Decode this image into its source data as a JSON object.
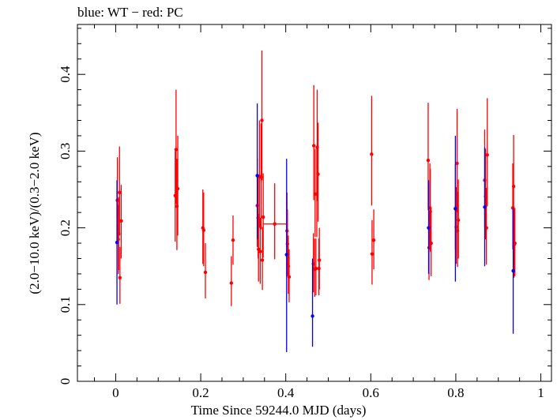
{
  "chart_data": {
    "type": "scatter",
    "title": "blue: WT − red: PC",
    "xlabel": "Time Since 59244.0 MJD (days)",
    "ylabel": "(2.0−10.0 keV)/(0.3−2.0 keV)",
    "xlim": [
      -0.09,
      1.025
    ],
    "ylim": [
      0,
      0.465
    ],
    "x_ticks": [
      0,
      0.2,
      0.4,
      0.6,
      0.8,
      1
    ],
    "x_tick_labels": [
      "0",
      "0.2",
      "0.4",
      "0.6",
      "0.8",
      "1"
    ],
    "y_ticks": [
      0,
      0.1,
      0.2,
      0.3,
      0.4
    ],
    "y_tick_labels": [
      "0",
      "0.1",
      "0.2",
      "0.3",
      "0.4"
    ],
    "grid": false,
    "series": [
      {
        "color": "#0000ff",
        "points": [
          {
            "x": 0.003,
            "y": 0.181,
            "lo": 0.1,
            "hi": 0.262
          },
          {
            "x": 0.333,
            "y": 0.268,
            "lo": 0.185,
            "hi": 0.362
          },
          {
            "x": 0.402,
            "y": 0.165,
            "lo": 0.038,
            "hi": 0.29
          },
          {
            "x": 0.463,
            "y": 0.085,
            "lo": 0.045,
            "hi": 0.16
          },
          {
            "x": 0.736,
            "y": 0.2,
            "lo": 0.14,
            "hi": 0.262
          },
          {
            "x": 0.799,
            "y": 0.225,
            "lo": 0.13,
            "hi": 0.32
          },
          {
            "x": 0.868,
            "y": 0.227,
            "lo": 0.15,
            "hi": 0.305
          },
          {
            "x": 0.935,
            "y": 0.144,
            "lo": 0.062,
            "hi": 0.226
          }
        ]
      },
      {
        "color": "#ff0000",
        "points": [
          {
            "x": 0.004,
            "y": 0.236,
            "lo": 0.18,
            "hi": 0.292
          },
          {
            "x": 0.006,
            "y": 0.185,
            "lo": 0.14,
            "hi": 0.23
          },
          {
            "x": 0.007,
            "y": 0.192,
            "lo": 0.145,
            "hi": 0.24
          },
          {
            "x": 0.009,
            "y": 0.246,
            "lo": 0.19,
            "hi": 0.306
          },
          {
            "x": 0.01,
            "y": 0.135,
            "lo": 0.101,
            "hi": 0.175
          },
          {
            "x": 0.013,
            "y": 0.209,
            "lo": 0.16,
            "hi": 0.256
          },
          {
            "x": 0.14,
            "y": 0.242,
            "lo": 0.182,
            "hi": 0.3
          },
          {
            "x": 0.142,
            "y": 0.302,
            "lo": 0.231,
            "hi": 0.38
          },
          {
            "x": 0.144,
            "y": 0.228,
            "lo": 0.171,
            "hi": 0.29
          },
          {
            "x": 0.146,
            "y": 0.251,
            "lo": 0.19,
            "hi": 0.32
          },
          {
            "x": 0.205,
            "y": 0.2,
            "lo": 0.153,
            "hi": 0.25
          },
          {
            "x": 0.207,
            "y": 0.197,
            "lo": 0.15,
            "hi": 0.246
          },
          {
            "x": 0.211,
            "y": 0.142,
            "lo": 0.108,
            "hi": 0.18
          },
          {
            "x": 0.272,
            "y": 0.128,
            "lo": 0.098,
            "hi": 0.163
          },
          {
            "x": 0.276,
            "y": 0.184,
            "lo": 0.152,
            "hi": 0.216
          },
          {
            "x": 0.333,
            "y": 0.229,
            "lo": 0.175,
            "hi": 0.29
          },
          {
            "x": 0.335,
            "y": 0.213,
            "lo": 0.16,
            "hi": 0.266
          },
          {
            "x": 0.336,
            "y": 0.172,
            "lo": 0.13,
            "hi": 0.218
          },
          {
            "x": 0.338,
            "y": 0.267,
            "lo": 0.2,
            "hi": 0.34
          },
          {
            "x": 0.34,
            "y": 0.169,
            "lo": 0.127,
            "hi": 0.213
          },
          {
            "x": 0.342,
            "y": 0.266,
            "lo": 0.198,
            "hi": 0.336
          },
          {
            "x": 0.344,
            "y": 0.34,
            "lo": 0.262,
            "hi": 0.431
          },
          {
            "x": 0.345,
            "y": 0.158,
            "lo": 0.119,
            "hi": 0.201
          },
          {
            "x": 0.347,
            "y": 0.214,
            "lo": 0.161,
            "hi": 0.271
          },
          {
            "x": 0.374,
            "y": 0.205,
            "lo": 0.159,
            "hi": 0.258,
            "xerr": 0.027
          },
          {
            "x": 0.403,
            "y": 0.196,
            "lo": 0.15,
            "hi": 0.246
          },
          {
            "x": 0.404,
            "y": 0.179,
            "lo": 0.137,
            "hi": 0.224
          },
          {
            "x": 0.406,
            "y": 0.15,
            "lo": 0.114,
            "hi": 0.19
          },
          {
            "x": 0.408,
            "y": 0.136,
            "lo": 0.103,
            "hi": 0.172
          },
          {
            "x": 0.465,
            "y": 0.153,
            "lo": 0.116,
            "hi": 0.193
          },
          {
            "x": 0.466,
            "y": 0.307,
            "lo": 0.236,
            "hi": 0.386
          },
          {
            "x": 0.468,
            "y": 0.146,
            "lo": 0.11,
            "hi": 0.186
          },
          {
            "x": 0.469,
            "y": 0.244,
            "lo": 0.188,
            "hi": 0.303
          },
          {
            "x": 0.471,
            "y": 0.147,
            "lo": 0.112,
            "hi": 0.186
          },
          {
            "x": 0.473,
            "y": 0.244,
            "lo": 0.188,
            "hi": 0.303
          },
          {
            "x": 0.474,
            "y": 0.305,
            "lo": 0.235,
            "hi": 0.38
          },
          {
            "x": 0.476,
            "y": 0.27,
            "lo": 0.208,
            "hi": 0.337
          },
          {
            "x": 0.478,
            "y": 0.147,
            "lo": 0.112,
            "hi": 0.186
          },
          {
            "x": 0.479,
            "y": 0.158,
            "lo": 0.12,
            "hi": 0.2
          },
          {
            "x": 0.602,
            "y": 0.296,
            "lo": 0.229,
            "hi": 0.372
          },
          {
            "x": 0.603,
            "y": 0.166,
            "lo": 0.126,
            "hi": 0.21
          },
          {
            "x": 0.607,
            "y": 0.184,
            "lo": 0.146,
            "hi": 0.224
          },
          {
            "x": 0.735,
            "y": 0.288,
            "lo": 0.223,
            "hi": 0.363
          },
          {
            "x": 0.737,
            "y": 0.174,
            "lo": 0.132,
            "hi": 0.22
          },
          {
            "x": 0.739,
            "y": 0.226,
            "lo": 0.173,
            "hi": 0.284
          },
          {
            "x": 0.74,
            "y": 0.221,
            "lo": 0.169,
            "hi": 0.277
          },
          {
            "x": 0.742,
            "y": 0.18,
            "lo": 0.137,
            "hi": 0.227
          },
          {
            "x": 0.799,
            "y": 0.225,
            "lo": 0.172,
            "hi": 0.283
          },
          {
            "x": 0.801,
            "y": 0.201,
            "lo": 0.153,
            "hi": 0.253
          },
          {
            "x": 0.803,
            "y": 0.284,
            "lo": 0.22,
            "hi": 0.355
          },
          {
            "x": 0.804,
            "y": 0.196,
            "lo": 0.149,
            "hi": 0.247
          },
          {
            "x": 0.806,
            "y": 0.21,
            "lo": 0.16,
            "hi": 0.263
          },
          {
            "x": 0.868,
            "y": 0.262,
            "lo": 0.201,
            "hi": 0.328
          },
          {
            "x": 0.87,
            "y": 0.241,
            "lo": 0.185,
            "hi": 0.303
          },
          {
            "x": 0.872,
            "y": 0.2,
            "lo": 0.152,
            "hi": 0.252
          },
          {
            "x": 0.874,
            "y": 0.295,
            "lo": 0.228,
            "hi": 0.369
          },
          {
            "x": 0.934,
            "y": 0.226,
            "lo": 0.172,
            "hi": 0.284
          },
          {
            "x": 0.936,
            "y": 0.254,
            "lo": 0.194,
            "hi": 0.321
          },
          {
            "x": 0.937,
            "y": 0.178,
            "lo": 0.135,
            "hi": 0.224
          },
          {
            "x": 0.939,
            "y": 0.18,
            "lo": 0.137,
            "hi": 0.226
          }
        ]
      }
    ]
  }
}
